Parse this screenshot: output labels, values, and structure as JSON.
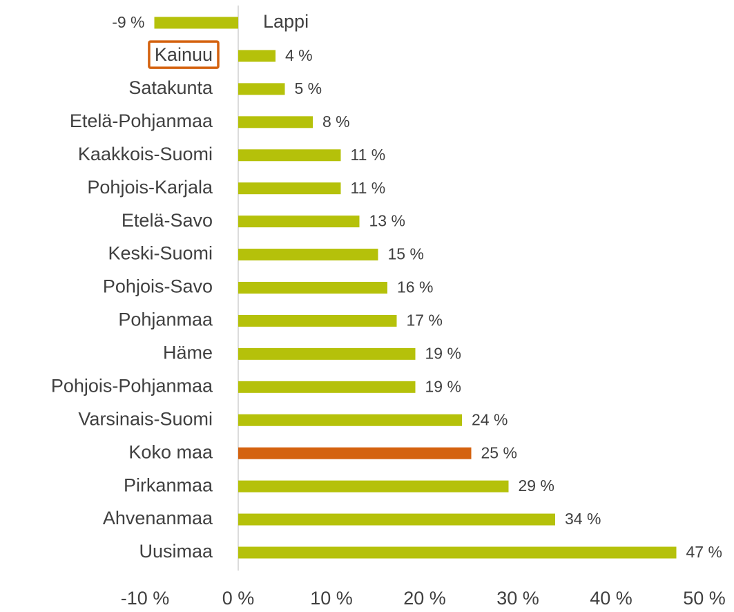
{
  "chart_data": {
    "type": "hbar",
    "categories": [
      "Lappi",
      "Kainuu",
      "Satakunta",
      "Etelä-Pohjanmaa",
      "Kaakkois-Suomi",
      "Pohjois-Karjala",
      "Etelä-Savo",
      "Keski-Suomi",
      "Pohjois-Savo",
      "Pohjanmaa",
      "Häme",
      "Pohjois-Pohjanmaa",
      "Varsinais-Suomi",
      "Koko maa",
      "Pirkanmaa",
      "Ahvenanmaa",
      "Uusimaa"
    ],
    "values": [
      -9,
      4,
      5,
      8,
      11,
      11,
      13,
      15,
      16,
      17,
      19,
      19,
      24,
      25,
      29,
      34,
      47
    ],
    "value_labels": [
      "-9 %",
      "4 %",
      "5 %",
      "8 %",
      "11 %",
      "11 %",
      "13 %",
      "15 %",
      "16 %",
      "17 %",
      "19 %",
      "19 %",
      "24 %",
      "25 %",
      "29 %",
      "34 %",
      "47 %"
    ],
    "colors": [
      "#b5c10a",
      "#b5c10a",
      "#b5c10a",
      "#b5c10a",
      "#b5c10a",
      "#b5c10a",
      "#b5c10a",
      "#b5c10a",
      "#b5c10a",
      "#b5c10a",
      "#b5c10a",
      "#b5c10a",
      "#b5c10a",
      "#d4620f",
      "#b5c10a",
      "#b5c10a",
      "#b5c10a"
    ],
    "highlighted_category": 1,
    "highlight_color": "#d4620f",
    "xlim": [
      -10,
      50
    ],
    "xticks": [
      {
        "value": -10,
        "label": "-10 %"
      },
      {
        "value": 0,
        "label": "0 %"
      },
      {
        "value": 10,
        "label": "10 %"
      },
      {
        "value": 20,
        "label": "20 %"
      },
      {
        "value": 30,
        "label": "30 %"
      },
      {
        "value": 40,
        "label": "40 %"
      },
      {
        "value": 50,
        "label": "50 %"
      }
    ],
    "grid": false
  }
}
